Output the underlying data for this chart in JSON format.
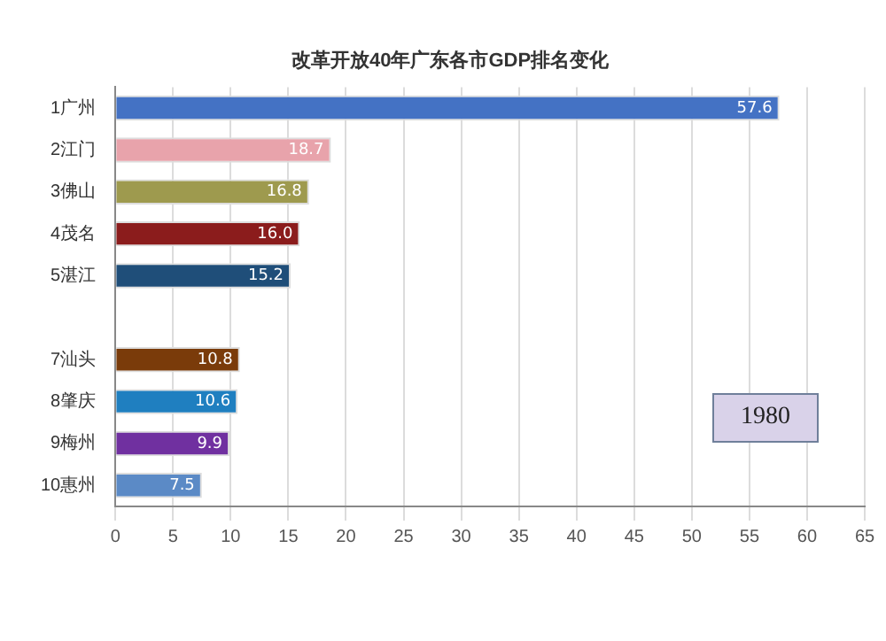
{
  "chart_data": {
    "type": "bar",
    "orientation": "horizontal",
    "title": "改革开放40年广东各市GDP排名变化",
    "categories": [
      "1广州",
      "2江门",
      "3佛山",
      "4茂名",
      "5湛江",
      null,
      "7汕头",
      "8肇庆",
      "9梅州",
      "10惠州"
    ],
    "values": [
      57.6,
      18.7,
      16.8,
      16.0,
      15.2,
      null,
      10.8,
      10.6,
      9.9,
      7.5
    ],
    "value_labels": [
      "57.6",
      "18.7",
      "16.8",
      "16.0",
      "15.2",
      null,
      "10.8",
      "10.6",
      "9.9",
      "7.5"
    ],
    "colors": [
      "#4472c4",
      "#e8a3ab",
      "#9e9a4e",
      "#8b1c1c",
      "#1f4e79",
      "#6a8a3a",
      "#7a3b0a",
      "#1f7fc0",
      "#7030a0",
      "#5b8ac6"
    ],
    "xlim": [
      0,
      65
    ],
    "xticks": [
      0,
      5,
      10,
      15,
      20,
      25,
      30,
      35,
      40,
      45,
      50,
      55,
      60,
      65
    ],
    "grid": "x",
    "annotations": [
      "1980"
    ]
  }
}
